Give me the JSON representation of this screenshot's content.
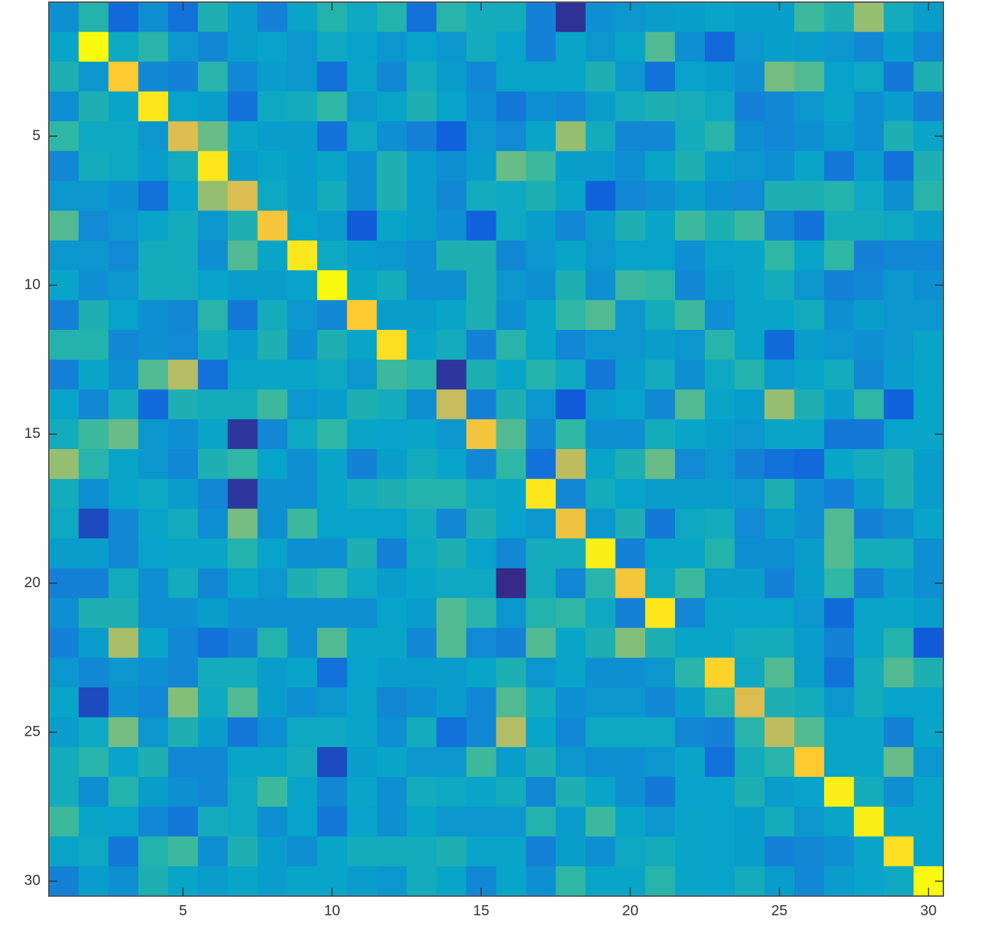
{
  "chart_data": {
    "type": "heatmap",
    "xlim": [
      0.5,
      30.5
    ],
    "ylim": [
      0.5,
      30.5
    ],
    "y_reversed": true,
    "xticks": [
      5,
      10,
      15,
      20,
      25,
      30
    ],
    "yticks": [
      5,
      10,
      15,
      20,
      25,
      30
    ],
    "clim": [
      0,
      1
    ],
    "colormap": [
      "#352a87",
      "#0f5cdd",
      "#1481d6",
      "#06a4ca",
      "#2eb7a4",
      "#87bf77",
      "#d1bb59",
      "#fec832",
      "#f9fb0e"
    ],
    "values": [
      [
        0.3,
        0.47,
        0.17,
        0.3,
        0.2,
        0.45,
        0.35,
        0.25,
        0.38,
        0.47,
        0.4,
        0.47,
        0.2,
        0.48,
        0.42,
        0.42,
        0.25,
        0.02,
        0.3,
        0.33,
        0.35,
        0.36,
        0.38,
        0.36,
        0.36,
        0.52,
        0.45,
        0.65,
        0.42,
        0.35
      ],
      [
        0.38,
        1.0,
        0.4,
        0.48,
        0.33,
        0.27,
        0.35,
        0.37,
        0.33,
        0.4,
        0.37,
        0.33,
        0.37,
        0.33,
        0.42,
        0.37,
        0.25,
        0.38,
        0.33,
        0.38,
        0.55,
        0.3,
        0.17,
        0.33,
        0.36,
        0.35,
        0.33,
        0.27,
        0.36,
        0.27
      ],
      [
        0.45,
        0.33,
        0.88,
        0.27,
        0.25,
        0.48,
        0.27,
        0.35,
        0.33,
        0.2,
        0.38,
        0.27,
        0.42,
        0.35,
        0.27,
        0.38,
        0.38,
        0.38,
        0.45,
        0.33,
        0.2,
        0.37,
        0.35,
        0.3,
        0.6,
        0.55,
        0.37,
        0.4,
        0.22,
        0.45
      ],
      [
        0.3,
        0.45,
        0.38,
        0.95,
        0.37,
        0.35,
        0.2,
        0.4,
        0.42,
        0.5,
        0.33,
        0.38,
        0.45,
        0.37,
        0.3,
        0.22,
        0.3,
        0.27,
        0.35,
        0.42,
        0.45,
        0.43,
        0.4,
        0.25,
        0.27,
        0.33,
        0.38,
        0.3,
        0.35,
        0.25
      ],
      [
        0.5,
        0.4,
        0.4,
        0.33,
        0.78,
        0.58,
        0.38,
        0.35,
        0.35,
        0.2,
        0.4,
        0.3,
        0.25,
        0.15,
        0.33,
        0.28,
        0.38,
        0.65,
        0.42,
        0.27,
        0.27,
        0.42,
        0.48,
        0.3,
        0.27,
        0.3,
        0.35,
        0.3,
        0.45,
        0.38
      ],
      [
        0.27,
        0.42,
        0.4,
        0.35,
        0.42,
        0.95,
        0.35,
        0.38,
        0.35,
        0.38,
        0.3,
        0.45,
        0.35,
        0.3,
        0.35,
        0.58,
        0.52,
        0.35,
        0.35,
        0.3,
        0.38,
        0.45,
        0.35,
        0.33,
        0.3,
        0.38,
        0.22,
        0.35,
        0.2,
        0.45
      ],
      [
        0.33,
        0.33,
        0.3,
        0.2,
        0.37,
        0.65,
        0.78,
        0.4,
        0.35,
        0.42,
        0.3,
        0.45,
        0.35,
        0.27,
        0.42,
        0.4,
        0.45,
        0.38,
        0.15,
        0.27,
        0.3,
        0.35,
        0.3,
        0.28,
        0.45,
        0.45,
        0.47,
        0.4,
        0.3,
        0.48
      ],
      [
        0.55,
        0.28,
        0.33,
        0.38,
        0.42,
        0.33,
        0.45,
        0.85,
        0.37,
        0.35,
        0.12,
        0.38,
        0.35,
        0.3,
        0.15,
        0.4,
        0.35,
        0.27,
        0.35,
        0.45,
        0.38,
        0.52,
        0.45,
        0.52,
        0.27,
        0.2,
        0.42,
        0.42,
        0.4,
        0.35
      ],
      [
        0.33,
        0.33,
        0.28,
        0.42,
        0.42,
        0.3,
        0.55,
        0.38,
        0.95,
        0.4,
        0.35,
        0.33,
        0.3,
        0.45,
        0.45,
        0.27,
        0.33,
        0.38,
        0.33,
        0.37,
        0.37,
        0.3,
        0.37,
        0.38,
        0.5,
        0.38,
        0.5,
        0.25,
        0.27,
        0.27
      ],
      [
        0.38,
        0.3,
        0.33,
        0.42,
        0.42,
        0.37,
        0.35,
        0.35,
        0.37,
        1.0,
        0.38,
        0.42,
        0.3,
        0.3,
        0.45,
        0.33,
        0.3,
        0.45,
        0.3,
        0.52,
        0.5,
        0.27,
        0.35,
        0.38,
        0.42,
        0.33,
        0.25,
        0.27,
        0.33,
        0.3
      ],
      [
        0.25,
        0.45,
        0.37,
        0.3,
        0.27,
        0.48,
        0.22,
        0.42,
        0.33,
        0.27,
        0.88,
        0.35,
        0.35,
        0.38,
        0.45,
        0.3,
        0.38,
        0.5,
        0.55,
        0.33,
        0.42,
        0.52,
        0.3,
        0.38,
        0.38,
        0.42,
        0.3,
        0.35,
        0.33,
        0.33
      ],
      [
        0.47,
        0.47,
        0.27,
        0.3,
        0.28,
        0.42,
        0.35,
        0.45,
        0.3,
        0.45,
        0.38,
        0.93,
        0.37,
        0.42,
        0.25,
        0.48,
        0.38,
        0.27,
        0.33,
        0.33,
        0.35,
        0.33,
        0.48,
        0.38,
        0.18,
        0.35,
        0.33,
        0.3,
        0.33,
        0.38
      ],
      [
        0.25,
        0.38,
        0.3,
        0.55,
        0.7,
        0.2,
        0.38,
        0.38,
        0.38,
        0.4,
        0.33,
        0.52,
        0.48,
        0.03,
        0.45,
        0.38,
        0.47,
        0.4,
        0.22,
        0.35,
        0.42,
        0.3,
        0.4,
        0.47,
        0.35,
        0.38,
        0.42,
        0.27,
        0.35,
        0.38
      ],
      [
        0.38,
        0.27,
        0.42,
        0.18,
        0.45,
        0.42,
        0.42,
        0.52,
        0.33,
        0.35,
        0.45,
        0.42,
        0.3,
        0.73,
        0.25,
        0.45,
        0.33,
        0.12,
        0.35,
        0.37,
        0.27,
        0.55,
        0.38,
        0.35,
        0.65,
        0.45,
        0.35,
        0.5,
        0.15,
        0.38
      ],
      [
        0.42,
        0.52,
        0.58,
        0.33,
        0.3,
        0.38,
        0.03,
        0.27,
        0.4,
        0.5,
        0.38,
        0.37,
        0.38,
        0.33,
        0.84,
        0.55,
        0.27,
        0.5,
        0.3,
        0.3,
        0.42,
        0.38,
        0.35,
        0.33,
        0.38,
        0.38,
        0.22,
        0.22,
        0.37,
        0.38
      ],
      [
        0.65,
        0.48,
        0.38,
        0.33,
        0.27,
        0.45,
        0.5,
        0.37,
        0.3,
        0.38,
        0.25,
        0.35,
        0.42,
        0.37,
        0.27,
        0.5,
        0.2,
        0.72,
        0.38,
        0.45,
        0.58,
        0.28,
        0.33,
        0.25,
        0.2,
        0.17,
        0.38,
        0.42,
        0.45,
        0.35
      ],
      [
        0.42,
        0.3,
        0.38,
        0.4,
        0.35,
        0.27,
        0.03,
        0.3,
        0.3,
        0.38,
        0.42,
        0.45,
        0.47,
        0.47,
        0.4,
        0.38,
        0.95,
        0.27,
        0.42,
        0.37,
        0.35,
        0.35,
        0.35,
        0.33,
        0.45,
        0.3,
        0.25,
        0.35,
        0.45,
        0.35
      ],
      [
        0.4,
        0.08,
        0.27,
        0.38,
        0.42,
        0.3,
        0.6,
        0.3,
        0.52,
        0.37,
        0.37,
        0.37,
        0.42,
        0.27,
        0.45,
        0.37,
        0.33,
        0.83,
        0.33,
        0.45,
        0.22,
        0.4,
        0.42,
        0.28,
        0.35,
        0.3,
        0.55,
        0.25,
        0.3,
        0.38
      ],
      [
        0.35,
        0.35,
        0.27,
        0.37,
        0.38,
        0.38,
        0.47,
        0.37,
        0.3,
        0.3,
        0.45,
        0.25,
        0.4,
        0.45,
        0.37,
        0.27,
        0.42,
        0.42,
        0.97,
        0.25,
        0.38,
        0.38,
        0.47,
        0.3,
        0.3,
        0.35,
        0.55,
        0.42,
        0.42,
        0.3
      ],
      [
        0.25,
        0.25,
        0.42,
        0.3,
        0.42,
        0.27,
        0.38,
        0.33,
        0.45,
        0.5,
        0.4,
        0.35,
        0.38,
        0.4,
        0.4,
        0.0,
        0.42,
        0.27,
        0.48,
        0.85,
        0.4,
        0.52,
        0.35,
        0.35,
        0.25,
        0.35,
        0.5,
        0.25,
        0.35,
        0.3
      ],
      [
        0.3,
        0.45,
        0.45,
        0.3,
        0.3,
        0.35,
        0.3,
        0.3,
        0.3,
        0.3,
        0.3,
        0.37,
        0.35,
        0.55,
        0.48,
        0.33,
        0.47,
        0.5,
        0.4,
        0.25,
        0.95,
        0.27,
        0.38,
        0.37,
        0.37,
        0.33,
        0.18,
        0.38,
        0.38,
        0.35
      ],
      [
        0.25,
        0.35,
        0.68,
        0.38,
        0.27,
        0.2,
        0.25,
        0.47,
        0.3,
        0.55,
        0.38,
        0.38,
        0.27,
        0.55,
        0.28,
        0.25,
        0.55,
        0.38,
        0.45,
        0.62,
        0.45,
        0.38,
        0.38,
        0.42,
        0.42,
        0.35,
        0.25,
        0.38,
        0.47,
        0.12
      ],
      [
        0.33,
        0.27,
        0.33,
        0.3,
        0.27,
        0.42,
        0.42,
        0.35,
        0.38,
        0.2,
        0.37,
        0.35,
        0.35,
        0.35,
        0.38,
        0.45,
        0.33,
        0.38,
        0.3,
        0.3,
        0.33,
        0.48,
        0.9,
        0.4,
        0.55,
        0.35,
        0.2,
        0.42,
        0.55,
        0.45
      ],
      [
        0.38,
        0.08,
        0.3,
        0.27,
        0.62,
        0.4,
        0.55,
        0.35,
        0.3,
        0.33,
        0.38,
        0.27,
        0.3,
        0.35,
        0.27,
        0.55,
        0.42,
        0.3,
        0.33,
        0.33,
        0.27,
        0.35,
        0.47,
        0.78,
        0.45,
        0.42,
        0.33,
        0.42,
        0.37,
        0.37
      ],
      [
        0.35,
        0.4,
        0.6,
        0.33,
        0.45,
        0.35,
        0.22,
        0.3,
        0.4,
        0.4,
        0.38,
        0.3,
        0.42,
        0.2,
        0.27,
        0.7,
        0.38,
        0.27,
        0.4,
        0.4,
        0.4,
        0.27,
        0.25,
        0.48,
        0.72,
        0.55,
        0.38,
        0.38,
        0.25,
        0.38
      ],
      [
        0.42,
        0.48,
        0.37,
        0.45,
        0.27,
        0.27,
        0.38,
        0.38,
        0.42,
        0.08,
        0.35,
        0.38,
        0.33,
        0.33,
        0.52,
        0.35,
        0.45,
        0.33,
        0.3,
        0.3,
        0.33,
        0.38,
        0.2,
        0.42,
        0.48,
        0.88,
        0.38,
        0.38,
        0.58,
        0.33
      ],
      [
        0.42,
        0.3,
        0.47,
        0.35,
        0.3,
        0.27,
        0.4,
        0.52,
        0.38,
        0.27,
        0.38,
        0.3,
        0.42,
        0.4,
        0.38,
        0.42,
        0.27,
        0.45,
        0.38,
        0.3,
        0.22,
        0.37,
        0.37,
        0.45,
        0.35,
        0.37,
        0.97,
        0.42,
        0.3,
        0.38
      ],
      [
        0.52,
        0.38,
        0.37,
        0.27,
        0.22,
        0.42,
        0.4,
        0.3,
        0.37,
        0.22,
        0.37,
        0.3,
        0.38,
        0.33,
        0.33,
        0.33,
        0.47,
        0.35,
        0.52,
        0.38,
        0.33,
        0.38,
        0.37,
        0.35,
        0.42,
        0.33,
        0.38,
        0.97,
        0.38,
        0.38
      ],
      [
        0.38,
        0.4,
        0.22,
        0.47,
        0.52,
        0.3,
        0.45,
        0.35,
        0.3,
        0.38,
        0.42,
        0.42,
        0.42,
        0.45,
        0.38,
        0.38,
        0.25,
        0.35,
        0.3,
        0.4,
        0.42,
        0.38,
        0.37,
        0.35,
        0.25,
        0.27,
        0.3,
        0.38,
        0.93,
        0.38
      ],
      [
        0.25,
        0.35,
        0.3,
        0.45,
        0.38,
        0.35,
        0.38,
        0.35,
        0.38,
        0.38,
        0.35,
        0.33,
        0.42,
        0.38,
        0.27,
        0.38,
        0.3,
        0.5,
        0.38,
        0.38,
        0.48,
        0.38,
        0.37,
        0.42,
        0.35,
        0.27,
        0.35,
        0.37,
        0.4,
        1.0
      ]
    ]
  }
}
